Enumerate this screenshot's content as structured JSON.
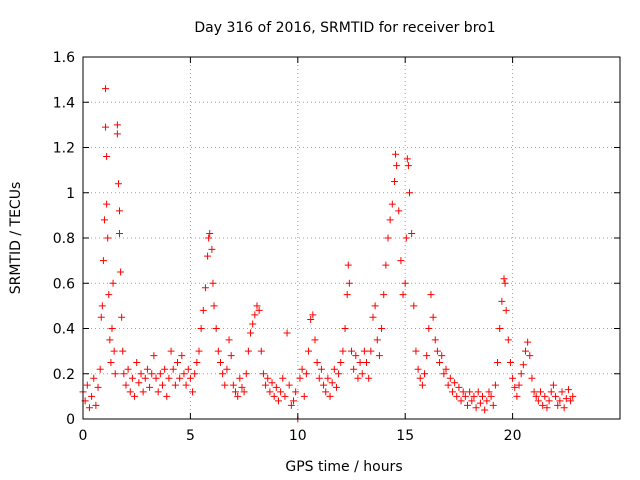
{
  "chart_data": {
    "type": "scatter",
    "title": "Day 316 of 2016, SRMTID for receiver bro1",
    "xlabel": "GPS time / hours",
    "ylabel": "SRMTID / TECUs",
    "xlim": [
      0,
      25
    ],
    "ylim": [
      0,
      1.6
    ],
    "xticks": [
      0,
      5,
      10,
      15,
      20
    ],
    "xtick_labels": [
      "0",
      "5",
      "10",
      "15",
      "20"
    ],
    "yticks": [
      0,
      0.2,
      0.4,
      0.6,
      0.8,
      1.0,
      1.2,
      1.4,
      1.6
    ],
    "ytick_labels": [
      "0",
      "0.2",
      "0.4",
      "0.6",
      "0.8",
      "1",
      "1.2",
      "1.4",
      "1.6"
    ],
    "grid": true,
    "marker": "plus",
    "color": "#ff0000",
    "series": [
      {
        "name": "SRMTID",
        "points": [
          [
            0.0,
            0.12
          ],
          [
            0.1,
            0.08
          ],
          [
            0.2,
            0.15
          ],
          [
            0.3,
            0.05
          ],
          [
            0.4,
            0.1
          ],
          [
            0.5,
            0.18
          ],
          [
            0.6,
            0.06
          ],
          [
            0.7,
            0.14
          ],
          [
            0.8,
            0.22
          ],
          [
            0.85,
            0.45
          ],
          [
            0.9,
            0.5
          ],
          [
            0.95,
            0.7
          ],
          [
            1.0,
            0.88
          ],
          [
            1.05,
            1.46
          ],
          [
            1.05,
            1.29
          ],
          [
            1.1,
            1.16
          ],
          [
            1.1,
            0.95
          ],
          [
            1.15,
            0.8
          ],
          [
            1.2,
            0.55
          ],
          [
            1.25,
            0.35
          ],
          [
            1.3,
            0.25
          ],
          [
            1.35,
            0.4
          ],
          [
            1.4,
            0.6
          ],
          [
            1.45,
            0.3
          ],
          [
            1.5,
            0.2
          ],
          [
            1.6,
            1.3
          ],
          [
            1.6,
            1.26
          ],
          [
            1.65,
            1.04
          ],
          [
            1.7,
            0.92
          ],
          [
            1.7,
            0.82
          ],
          [
            1.75,
            0.65
          ],
          [
            1.8,
            0.45
          ],
          [
            1.85,
            0.3
          ],
          [
            1.9,
            0.2
          ],
          [
            2.0,
            0.15
          ],
          [
            2.1,
            0.22
          ],
          [
            2.2,
            0.12
          ],
          [
            2.3,
            0.18
          ],
          [
            2.4,
            0.1
          ],
          [
            2.5,
            0.25
          ],
          [
            2.6,
            0.16
          ],
          [
            2.7,
            0.2
          ],
          [
            2.8,
            0.12
          ],
          [
            2.9,
            0.18
          ],
          [
            3.0,
            0.22
          ],
          [
            3.1,
            0.14
          ],
          [
            3.2,
            0.2
          ],
          [
            3.3,
            0.28
          ],
          [
            3.4,
            0.18
          ],
          [
            3.5,
            0.12
          ],
          [
            3.6,
            0.2
          ],
          [
            3.7,
            0.15
          ],
          [
            3.8,
            0.22
          ],
          [
            3.9,
            0.1
          ],
          [
            4.0,
            0.18
          ],
          [
            4.1,
            0.3
          ],
          [
            4.2,
            0.22
          ],
          [
            4.3,
            0.15
          ],
          [
            4.4,
            0.25
          ],
          [
            4.5,
            0.18
          ],
          [
            4.6,
            0.28
          ],
          [
            4.7,
            0.2
          ],
          [
            4.8,
            0.15
          ],
          [
            4.9,
            0.22
          ],
          [
            5.0,
            0.18
          ],
          [
            5.1,
            0.12
          ],
          [
            5.2,
            0.2
          ],
          [
            5.3,
            0.25
          ],
          [
            5.4,
            0.3
          ],
          [
            5.5,
            0.4
          ],
          [
            5.6,
            0.48
          ],
          [
            5.7,
            0.58
          ],
          [
            5.8,
            0.72
          ],
          [
            5.85,
            0.8
          ],
          [
            5.9,
            0.82
          ],
          [
            6.0,
            0.75
          ],
          [
            6.05,
            0.6
          ],
          [
            6.1,
            0.5
          ],
          [
            6.2,
            0.4
          ],
          [
            6.3,
            0.3
          ],
          [
            6.4,
            0.25
          ],
          [
            6.5,
            0.2
          ],
          [
            6.6,
            0.15
          ],
          [
            6.7,
            0.22
          ],
          [
            6.8,
            0.35
          ],
          [
            6.9,
            0.28
          ],
          [
            7.0,
            0.15
          ],
          [
            7.1,
            0.12
          ],
          [
            7.2,
            0.1
          ],
          [
            7.3,
            0.18
          ],
          [
            7.4,
            0.14
          ],
          [
            7.5,
            0.12
          ],
          [
            7.6,
            0.2
          ],
          [
            7.7,
            0.3
          ],
          [
            7.8,
            0.38
          ],
          [
            7.9,
            0.42
          ],
          [
            8.0,
            0.46
          ],
          [
            8.1,
            0.5
          ],
          [
            8.2,
            0.48
          ],
          [
            8.3,
            0.3
          ],
          [
            8.4,
            0.2
          ],
          [
            8.5,
            0.15
          ],
          [
            8.6,
            0.18
          ],
          [
            8.7,
            0.12
          ],
          [
            8.8,
            0.16
          ],
          [
            8.9,
            0.1
          ],
          [
            9.0,
            0.14
          ],
          [
            9.1,
            0.08
          ],
          [
            9.2,
            0.12
          ],
          [
            9.3,
            0.18
          ],
          [
            9.4,
            0.1
          ],
          [
            9.5,
            0.38
          ],
          [
            9.6,
            0.15
          ],
          [
            9.7,
            0.06
          ],
          [
            9.8,
            0.08
          ],
          [
            9.9,
            0.12
          ],
          [
            10.0,
            0.0
          ],
          [
            10.1,
            0.18
          ],
          [
            10.2,
            0.22
          ],
          [
            10.3,
            0.1
          ],
          [
            10.4,
            0.2
          ],
          [
            10.5,
            0.3
          ],
          [
            10.6,
            0.44
          ],
          [
            10.7,
            0.46
          ],
          [
            10.8,
            0.35
          ],
          [
            10.9,
            0.25
          ],
          [
            11.0,
            0.18
          ],
          [
            11.1,
            0.22
          ],
          [
            11.2,
            0.15
          ],
          [
            11.3,
            0.12
          ],
          [
            11.4,
            0.18
          ],
          [
            11.5,
            0.1
          ],
          [
            11.6,
            0.16
          ],
          [
            11.7,
            0.22
          ],
          [
            11.8,
            0.14
          ],
          [
            11.9,
            0.2
          ],
          [
            12.0,
            0.25
          ],
          [
            12.1,
            0.3
          ],
          [
            12.2,
            0.4
          ],
          [
            12.3,
            0.55
          ],
          [
            12.35,
            0.68
          ],
          [
            12.4,
            0.6
          ],
          [
            12.5,
            0.3
          ],
          [
            12.6,
            0.22
          ],
          [
            12.7,
            0.28
          ],
          [
            12.8,
            0.18
          ],
          [
            12.9,
            0.25
          ],
          [
            13.0,
            0.2
          ],
          [
            13.1,
            0.3
          ],
          [
            13.2,
            0.25
          ],
          [
            13.3,
            0.18
          ],
          [
            13.4,
            0.3
          ],
          [
            13.5,
            0.45
          ],
          [
            13.6,
            0.5
          ],
          [
            13.7,
            0.35
          ],
          [
            13.8,
            0.28
          ],
          [
            13.9,
            0.4
          ],
          [
            14.0,
            0.55
          ],
          [
            14.1,
            0.68
          ],
          [
            14.2,
            0.8
          ],
          [
            14.3,
            0.88
          ],
          [
            14.4,
            0.95
          ],
          [
            14.5,
            1.05
          ],
          [
            14.55,
            1.17
          ],
          [
            14.6,
            1.12
          ],
          [
            14.7,
            0.92
          ],
          [
            14.8,
            0.7
          ],
          [
            14.9,
            0.55
          ],
          [
            15.0,
            0.6
          ],
          [
            15.05,
            0.8
          ],
          [
            15.1,
            1.15
          ],
          [
            15.15,
            1.12
          ],
          [
            15.2,
            1.0
          ],
          [
            15.3,
            0.82
          ],
          [
            15.4,
            0.5
          ],
          [
            15.5,
            0.3
          ],
          [
            15.6,
            0.22
          ],
          [
            15.7,
            0.18
          ],
          [
            15.8,
            0.15
          ],
          [
            15.9,
            0.2
          ],
          [
            16.0,
            0.28
          ],
          [
            16.1,
            0.4
          ],
          [
            16.2,
            0.55
          ],
          [
            16.3,
            0.45
          ],
          [
            16.4,
            0.35
          ],
          [
            16.5,
            0.3
          ],
          [
            16.6,
            0.25
          ],
          [
            16.7,
            0.28
          ],
          [
            16.8,
            0.2
          ],
          [
            16.9,
            0.22
          ],
          [
            17.0,
            0.15
          ],
          [
            17.1,
            0.18
          ],
          [
            17.2,
            0.12
          ],
          [
            17.3,
            0.16
          ],
          [
            17.4,
            0.1
          ],
          [
            17.5,
            0.14
          ],
          [
            17.6,
            0.08
          ],
          [
            17.7,
            0.12
          ],
          [
            17.8,
            0.1
          ],
          [
            17.9,
            0.06
          ],
          [
            18.0,
            0.12
          ],
          [
            18.1,
            0.08
          ],
          [
            18.2,
            0.1
          ],
          [
            18.3,
            0.05
          ],
          [
            18.4,
            0.12
          ],
          [
            18.5,
            0.07
          ],
          [
            18.6,
            0.1
          ],
          [
            18.7,
            0.04
          ],
          [
            18.8,
            0.08
          ],
          [
            18.9,
            0.12
          ],
          [
            19.0,
            0.1
          ],
          [
            19.1,
            0.06
          ],
          [
            19.2,
            0.15
          ],
          [
            19.3,
            0.25
          ],
          [
            19.4,
            0.4
          ],
          [
            19.5,
            0.52
          ],
          [
            19.6,
            0.62
          ],
          [
            19.65,
            0.6
          ],
          [
            19.7,
            0.48
          ],
          [
            19.8,
            0.35
          ],
          [
            19.9,
            0.25
          ],
          [
            20.0,
            0.18
          ],
          [
            20.1,
            0.14
          ],
          [
            20.2,
            0.1
          ],
          [
            20.3,
            0.15
          ],
          [
            20.4,
            0.2
          ],
          [
            20.5,
            0.24
          ],
          [
            20.6,
            0.3
          ],
          [
            20.7,
            0.34
          ],
          [
            20.8,
            0.28
          ],
          [
            20.9,
            0.18
          ],
          [
            21.0,
            0.12
          ],
          [
            21.1,
            0.1
          ],
          [
            21.2,
            0.08
          ],
          [
            21.3,
            0.12
          ],
          [
            21.4,
            0.06
          ],
          [
            21.5,
            0.1
          ],
          [
            21.6,
            0.05
          ],
          [
            21.7,
            0.08
          ],
          [
            21.8,
            0.12
          ],
          [
            21.9,
            0.15
          ],
          [
            22.0,
            0.1
          ],
          [
            22.1,
            0.06
          ],
          [
            22.2,
            0.08
          ],
          [
            22.3,
            0.12
          ],
          [
            22.4,
            0.05
          ],
          [
            22.5,
            0.09
          ],
          [
            22.6,
            0.13
          ],
          [
            22.7,
            0.08
          ],
          [
            22.8,
            0.1
          ]
        ]
      }
    ]
  }
}
